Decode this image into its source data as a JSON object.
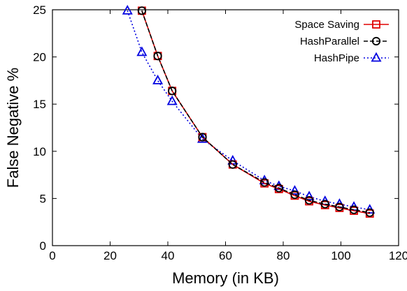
{
  "chart_data": {
    "type": "line",
    "xlabel": "Memory (in KB)",
    "ylabel": "False Negative %",
    "xlim": [
      0,
      120
    ],
    "ylim": [
      0,
      25
    ],
    "xticks": [
      0,
      20,
      40,
      60,
      80,
      100,
      120
    ],
    "yticks": [
      0,
      5,
      10,
      15,
      20,
      25
    ],
    "grid": false,
    "legend_position": "top-right",
    "series": [
      {
        "name": "Space Saving",
        "color": "#e00000",
        "marker": "square",
        "line_style": "solid",
        "x": [
          31,
          36.5,
          41.5,
          52,
          62.5,
          73.5,
          78.5,
          84,
          89,
          94.5,
          99.5,
          104.5,
          110
        ],
        "y": [
          24.9,
          20.1,
          16.4,
          11.5,
          8.6,
          6.6,
          6.0,
          5.3,
          4.7,
          4.3,
          4.0,
          3.7,
          3.4
        ]
      },
      {
        "name": "HashParallel",
        "color": "#000000",
        "marker": "circle",
        "line_style": "dashed",
        "x": [
          31,
          36.5,
          41.5,
          52,
          62.5,
          73.5,
          78.5,
          84,
          89,
          94.5,
          99.5,
          104.5,
          110
        ],
        "y": [
          24.9,
          20.1,
          16.4,
          11.5,
          8.6,
          6.7,
          6.1,
          5.4,
          4.8,
          4.4,
          4.1,
          3.8,
          3.5
        ]
      },
      {
        "name": "HashPipe",
        "color": "#0000e0",
        "marker": "triangle",
        "line_style": "dotted",
        "x": [
          26,
          31,
          36.5,
          41.5,
          52,
          62.5,
          73.5,
          78.5,
          84,
          89,
          94.5,
          99.5,
          104.5,
          110
        ],
        "y": [
          24.9,
          20.5,
          17.5,
          15.3,
          11.3,
          9.0,
          6.9,
          6.3,
          5.8,
          5.2,
          4.7,
          4.4,
          4.1,
          3.8
        ]
      }
    ]
  }
}
